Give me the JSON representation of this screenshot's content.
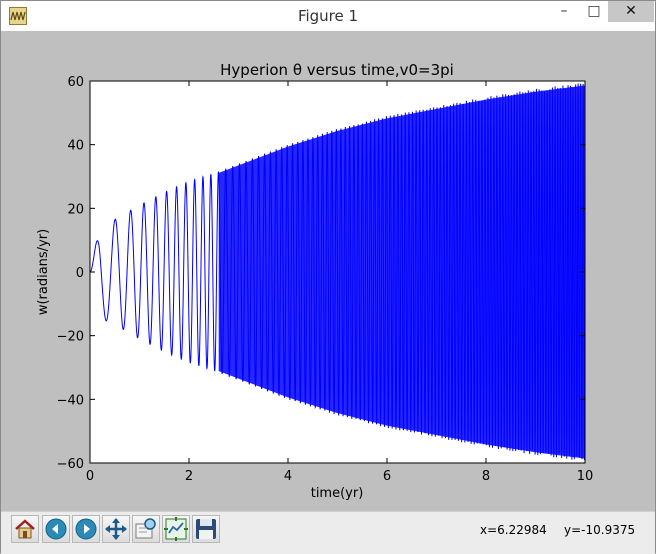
{
  "window": {
    "title": "Figure 1",
    "minimize_label": "–",
    "maximize_label": "□",
    "close_label": "✕"
  },
  "chart_data": {
    "type": "line",
    "title": "Hyperion θ versus time,v0=3pi",
    "xlabel": "time(yr)",
    "ylabel": "w(radians/yr)",
    "xlim": [
      0,
      10
    ],
    "ylim": [
      -60,
      60
    ],
    "xticks": [
      "0",
      "2",
      "4",
      "6",
      "8",
      "10"
    ],
    "yticks": [
      "60",
      "40",
      "20",
      "0",
      "−20",
      "−40",
      "−60"
    ],
    "grid": false,
    "series": [
      {
        "color": "#0000ff",
        "envelope": {
          "t": [
            0,
            0.2,
            0.5,
            1,
            1.5,
            2,
            2.5,
            3,
            4,
            5,
            6,
            7,
            8,
            9,
            10
          ],
          "amp": [
            0,
            14.5,
            16.5,
            21,
            25,
            28.5,
            31,
            34,
            40,
            45,
            49,
            52,
            55,
            57.5,
            59.5
          ]
        },
        "oscillations_visible": 60
      }
    ]
  },
  "toolbar": {
    "buttons": [
      {
        "name": "home-button",
        "icon": "home-icon"
      },
      {
        "name": "back-button",
        "icon": "back-arrow-icon"
      },
      {
        "name": "forward-button",
        "icon": "forward-arrow-icon"
      },
      {
        "name": "pan-button",
        "icon": "pan-arrows-icon"
      },
      {
        "name": "zoom-button",
        "icon": "zoom-rect-icon"
      },
      {
        "name": "subplots-button",
        "icon": "subplots-config-icon"
      },
      {
        "name": "save-button",
        "icon": "floppy-disk-icon"
      }
    ],
    "coord_x": "x=6.22984",
    "coord_y": "y=-10.9375"
  }
}
